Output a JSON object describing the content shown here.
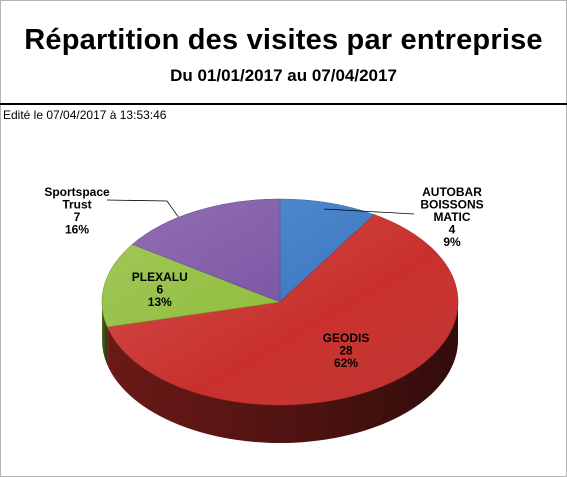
{
  "header": {
    "title": "Répartition des visites par entreprise",
    "subtitle": "Du 01/01/2017 au 07/04/2017",
    "edited": "Edité le 07/04/2017 à 13:53:46"
  },
  "chart_data": {
    "type": "pie",
    "title": "Répartition des visites par entreprise",
    "subtitle": "Du 01/01/2017 au 07/04/2017",
    "slices": [
      {
        "label": [
          "AUTOBAR",
          "BOISSONS",
          "MATIC"
        ],
        "value": 4,
        "percent": "9%",
        "color": "#3a78c4"
      },
      {
        "label": [
          "GEODIS"
        ],
        "value": 28,
        "percent": "62%",
        "color": "#c9302c"
      },
      {
        "label": [
          "PLEXALU"
        ],
        "value": 6,
        "percent": "13%",
        "color": "#8fbd3a"
      },
      {
        "label": [
          "Sportspace",
          "Trust"
        ],
        "value": 7,
        "percent": "16%",
        "color": "#7a52a3"
      }
    ],
    "legend": "none"
  }
}
